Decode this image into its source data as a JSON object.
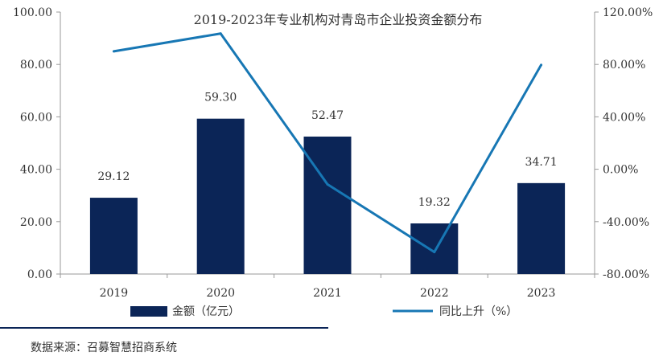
{
  "chart_data": {
    "type": "bar+line",
    "title": "2019-2023年专业机构对青岛市企业投资金额分布",
    "categories": [
      "2019",
      "2020",
      "2021",
      "2022",
      "2023"
    ],
    "series": [
      {
        "name": "金额（亿元）",
        "type": "bar",
        "axis": "left",
        "values": [
          29.12,
          59.3,
          52.47,
          19.32,
          34.71
        ],
        "labels": [
          "29.12",
          "59.30",
          "52.47",
          "19.32",
          "34.71"
        ],
        "color": "#0b2557"
      },
      {
        "name": "同比上升（%）",
        "type": "line",
        "axis": "right",
        "values": [
          90.0,
          103.6,
          -11.5,
          -63.2,
          79.7
        ],
        "color": "#1777b4"
      }
    ],
    "y_left": {
      "ylim": [
        0,
        100
      ],
      "ticks": [
        "0.00",
        "20.00",
        "40.00",
        "60.00",
        "80.00",
        "100.00"
      ]
    },
    "y_right": {
      "ylim": [
        -80,
        120
      ],
      "ticks": [
        "-80.00%",
        "-40.00%",
        "0.00%",
        "40.00%",
        "80.00%",
        "120.00%"
      ]
    },
    "grid": false,
    "legend_position": "bottom"
  },
  "source": "数据来源：召募智慧招商系统"
}
